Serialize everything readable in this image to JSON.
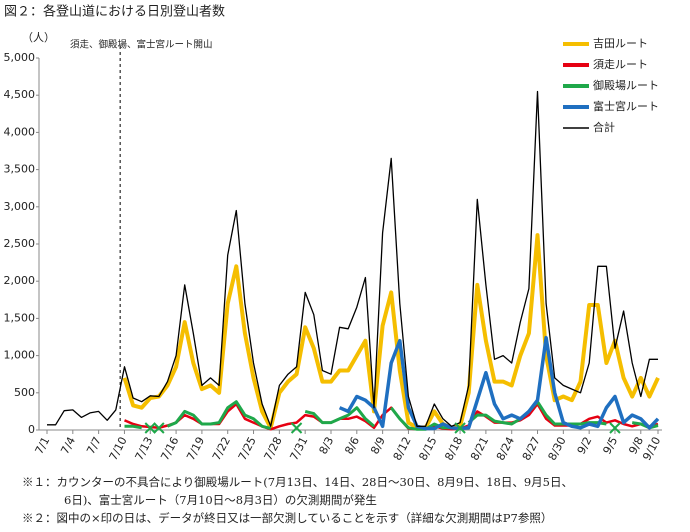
{
  "chart_data": {
    "type": "line",
    "title": "図２：各登山道における日別登山者数",
    "y_unit": "（人）",
    "annotation": "須走、御殿場、富士宮ルート開山",
    "notes": [
      "※１：カウンターの不具合により御殿場ルート(7月13日、14日、28日～30日、8月9日、18日、9月5日、",
      "6日)、富士宮ルート（7月10日～8月3日）の欠測期間が発生",
      "※２：図中の×印の日は、データが終日又は一部欠測していることを示す（詳細な欠測期間はP7参照）"
    ],
    "categories": [
      "7/1",
      null,
      null,
      "7/4",
      null,
      null,
      "7/7",
      null,
      null,
      "7/10",
      null,
      null,
      "7/13",
      null,
      null,
      "7/16",
      null,
      null,
      "7/19",
      null,
      null,
      "7/22",
      null,
      null,
      "7/25",
      null,
      null,
      "7/28",
      null,
      null,
      "7/31",
      null,
      null,
      "8/3",
      null,
      null,
      "8/6",
      null,
      null,
      "8/9",
      null,
      null,
      "8/12",
      null,
      null,
      "8/15",
      null,
      null,
      "8/18",
      null,
      null,
      "8/21",
      null,
      null,
      "8/24",
      null,
      null,
      "8/27",
      null,
      null,
      "8/30",
      null,
      null,
      "9/2",
      null,
      null,
      "9/5",
      null,
      null,
      "9/8",
      null,
      "9/10"
    ],
    "series": [
      {
        "name": "吉田ルート",
        "color": "#f5be00",
        "values": [
          null,
          null,
          null,
          null,
          null,
          null,
          null,
          null,
          null,
          700,
          330,
          300,
          430,
          450,
          600,
          850,
          1450,
          900,
          550,
          600,
          500,
          1700,
          2200,
          1300,
          700,
          250,
          30,
          500,
          650,
          750,
          1380,
          1100,
          650,
          650,
          800,
          800,
          1000,
          1200,
          250,
          1400,
          1850,
          800,
          100,
          30,
          30,
          250,
          80,
          30,
          50,
          500,
          1950,
          1200,
          650,
          650,
          600,
          1000,
          1300,
          2620,
          1000,
          400,
          450,
          400,
          650,
          1680,
          1680,
          900,
          1200,
          700,
          450,
          700,
          450,
          700
        ]
      },
      {
        "name": "須走ルート",
        "color": "#e60012",
        "values": [
          null,
          null,
          null,
          null,
          null,
          null,
          null,
          null,
          null,
          130,
          80,
          50,
          40,
          30,
          60,
          100,
          200,
          150,
          80,
          80,
          80,
          250,
          350,
          150,
          100,
          50,
          10,
          50,
          80,
          100,
          200,
          180,
          100,
          100,
          150,
          150,
          180,
          120,
          30,
          200,
          300,
          150,
          20,
          10,
          10,
          50,
          20,
          10,
          20,
          60,
          250,
          180,
          100,
          100,
          100,
          130,
          200,
          350,
          150,
          60,
          60,
          60,
          80,
          150,
          180,
          100,
          130,
          80,
          50,
          80,
          50,
          80
        ]
      },
      {
        "name": "御殿場ルート",
        "color": "#1fa84a",
        "values": [
          null,
          null,
          null,
          null,
          null,
          null,
          null,
          null,
          null,
          50,
          50,
          30,
          null,
          null,
          50,
          100,
          250,
          200,
          80,
          80,
          100,
          300,
          380,
          200,
          150,
          50,
          20,
          null,
          null,
          null,
          250,
          220,
          100,
          100,
          150,
          200,
          300,
          150,
          50,
          null,
          300,
          150,
          30,
          10,
          10,
          80,
          30,
          30,
          null,
          100,
          200,
          200,
          120,
          100,
          80,
          150,
          250,
          380,
          200,
          80,
          80,
          80,
          80,
          100,
          100,
          80,
          null,
          null,
          100,
          80,
          30,
          60
        ]
      },
      {
        "name": "富士宮ルート",
        "color": "#1f6fc0",
        "values": [
          null,
          null,
          null,
          null,
          null,
          null,
          null,
          null,
          null,
          null,
          null,
          null,
          null,
          null,
          null,
          null,
          null,
          null,
          null,
          null,
          null,
          null,
          null,
          null,
          null,
          null,
          null,
          null,
          null,
          null,
          null,
          null,
          null,
          null,
          300,
          250,
          450,
          400,
          300,
          50,
          900,
          1200,
          300,
          50,
          20,
          20,
          80,
          30,
          20,
          30,
          400,
          770,
          350,
          150,
          200,
          150,
          250,
          400,
          1240,
          500,
          100,
          50,
          30,
          80,
          50,
          300,
          450,
          100,
          200,
          150,
          30,
          150
        ]
      },
      {
        "name": "合計",
        "color": "#000000",
        "values": [
          70,
          70,
          260,
          270,
          170,
          230,
          250,
          130,
          270,
          850,
          430,
          380,
          460,
          450,
          650,
          1000,
          1950,
          1300,
          600,
          700,
          600,
          2350,
          2950,
          1700,
          900,
          350,
          50,
          600,
          750,
          850,
          1850,
          1550,
          800,
          750,
          1380,
          1360,
          1650,
          2050,
          300,
          2650,
          3650,
          1700,
          450,
          50,
          50,
          350,
          150,
          50,
          100,
          600,
          3100,
          1950,
          950,
          1000,
          900,
          1450,
          1900,
          4550,
          1700,
          700,
          600,
          550,
          500,
          900,
          2200,
          2200,
          1100,
          1600,
          900,
          450,
          950,
          950
        ]
      }
    ],
    "ylim": [
      0,
      5000
    ],
    "yticks": [
      0,
      500,
      {
        "value": 1000,
        "label": "1,000"
      },
      {
        "value": 1500,
        "label": "1,500"
      },
      {
        "value": 2000,
        "label": "2,000"
      },
      {
        "value": 2500,
        "label": "2,500"
      },
      {
        "value": 3000,
        "label": "3,000"
      },
      {
        "value": 3500,
        "label": "3,500"
      },
      {
        "value": 4000,
        "label": "4,000"
      },
      {
        "value": 4500,
        "label": "4,500"
      },
      {
        "value": 5000,
        "label": "5,000"
      }
    ],
    "grid": false,
    "legend": "top-right"
  }
}
